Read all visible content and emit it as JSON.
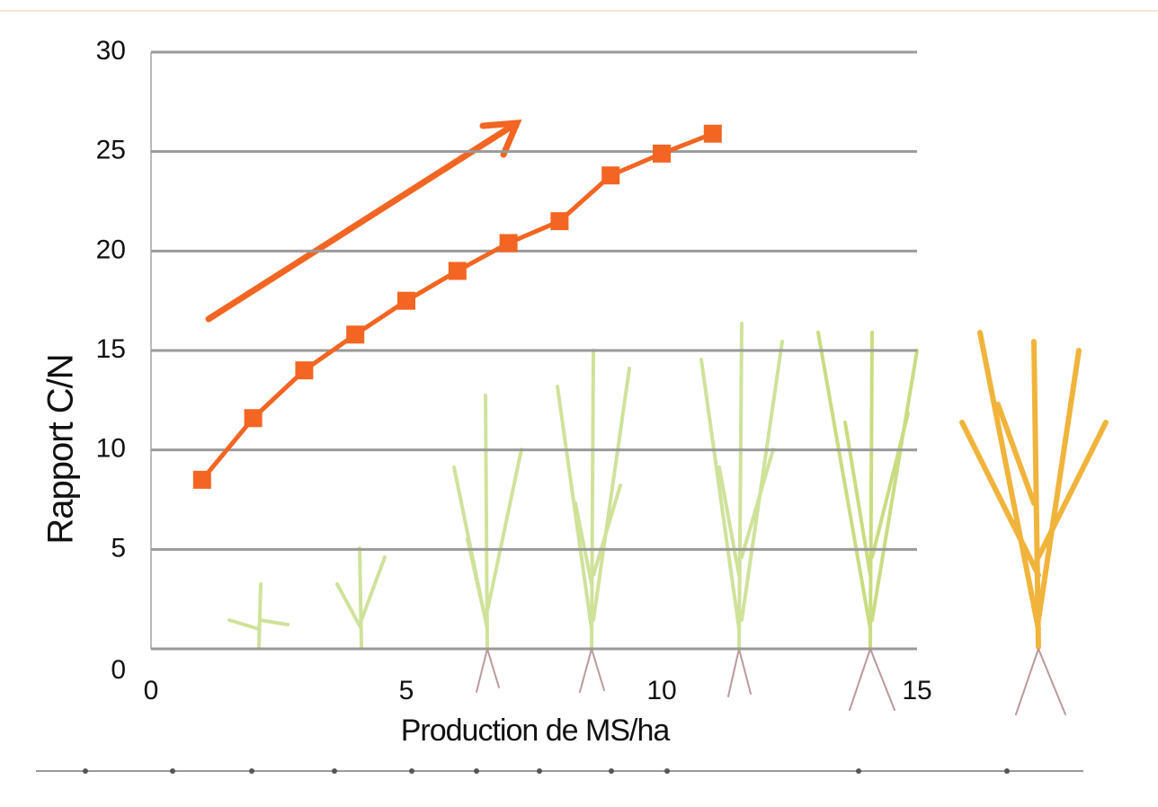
{
  "chart_data": {
    "type": "line",
    "x_label": "Production de MS/ha",
    "y_label": "Rapport C/N",
    "x": [
      1,
      2,
      3,
      4,
      5,
      6,
      7,
      8,
      9,
      10,
      11
    ],
    "series": [
      {
        "color": "#f26522",
        "values": [
          8.5,
          11.6,
          14.0,
          15.8,
          17.5,
          19.0,
          20.4,
          21.5,
          23.8,
          24.9,
          25.9
        ]
      }
    ],
    "xlim": [
      0,
      15
    ],
    "ylim": [
      0,
      30
    ],
    "xticks": [
      0,
      5,
      10,
      15
    ],
    "yticks": [
      0,
      5,
      10,
      15,
      20,
      25,
      30
    ],
    "grid": true
  }
}
